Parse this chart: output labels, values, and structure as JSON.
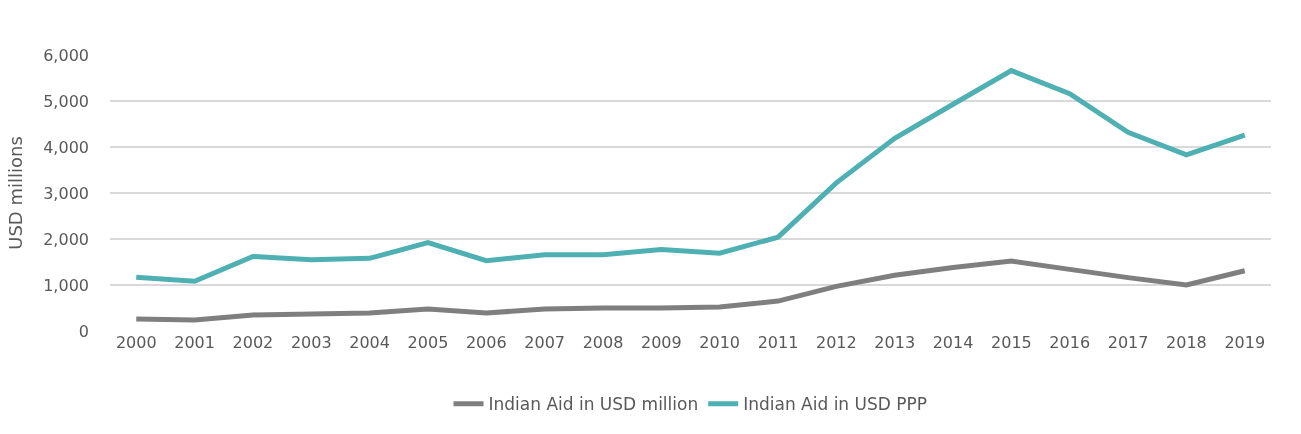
{
  "chart_data": {
    "type": "line",
    "ylabel": "USD millions",
    "categories": [
      "2000",
      "2001",
      "2002",
      "2003",
      "2004",
      "2005",
      "2006",
      "2007",
      "2008",
      "2009",
      "2010",
      "2011",
      "2012",
      "2013",
      "2014",
      "2015",
      "2016",
      "2017",
      "2018",
      "2019"
    ],
    "series": [
      {
        "name": "Indian Aid in USD million",
        "color": "#7f7f7f",
        "values": [
          260,
          240,
          350,
          370,
          390,
          480,
          390,
          480,
          500,
          500,
          520,
          650,
          970,
          1210,
          1380,
          1520,
          1340,
          1160,
          1000,
          1310
        ]
      },
      {
        "name": "Indian Aid in USD PPP",
        "color": "#4fb0b3",
        "values": [
          1170,
          1080,
          1620,
          1550,
          1580,
          1920,
          1530,
          1660,
          1660,
          1770,
          1690,
          2040,
          3220,
          4190,
          4930,
          5660,
          5160,
          4320,
          3830,
          4260
        ]
      }
    ],
    "ylim": [
      0,
      6000
    ],
    "yticks": [
      {
        "value": 0,
        "label": "0"
      },
      {
        "value": 1000,
        "label": "1,000"
      },
      {
        "value": 2000,
        "label": "2,000"
      },
      {
        "value": 3000,
        "label": "3,000"
      },
      {
        "value": 4000,
        "label": "4,000"
      },
      {
        "value": 5000,
        "label": "5,000"
      },
      {
        "value": 6000,
        "label": "6,000"
      }
    ],
    "grid": "y",
    "legend": "bottom",
    "marker": "none",
    "line_style": "solid"
  }
}
